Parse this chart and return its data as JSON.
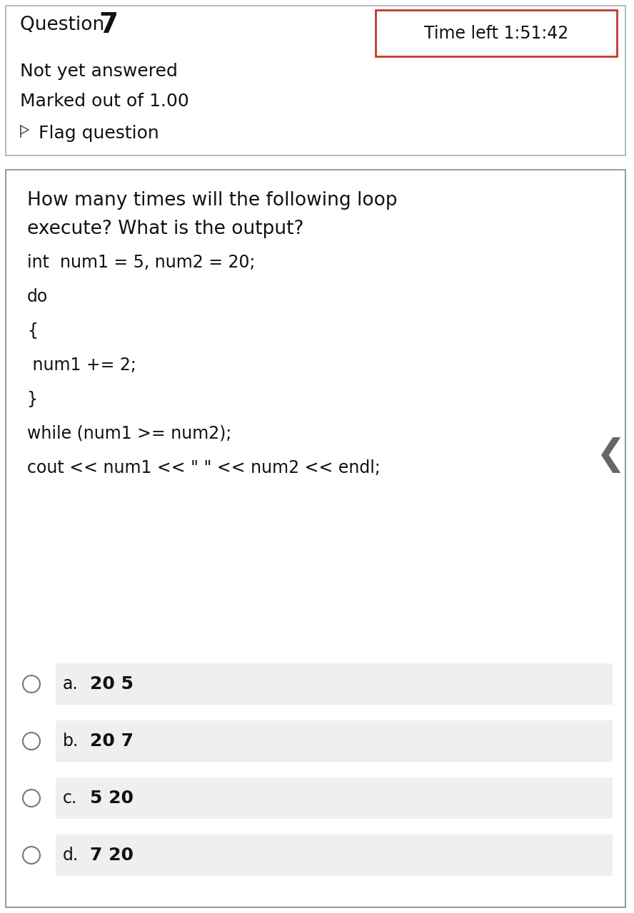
{
  "bg_color": "#ffffff",
  "question_label": "Question ",
  "question_number": "7",
  "time_label": "Time left 1:51:42",
  "time_box_color": "#c0392b",
  "not_answered": "Not yet answered",
  "marked_out": "Marked out of 1.00",
  "flag_label": " Flag question",
  "question_text_line1": "How many times will the following loop",
  "question_text_line2": "execute? What is the output?",
  "code_lines": [
    "int  num1 = 5, num2 = 20;",
    "do",
    "{",
    " num1 += 2;",
    "}",
    "while (num1 >= num2);",
    "cout << num1 << \" \" << num2 << endl;"
  ],
  "options": [
    {
      "label": "a.",
      "text": "20 5"
    },
    {
      "label": "b.",
      "text": "20 7"
    },
    {
      "label": "c.",
      "text": "5 20"
    },
    {
      "label": "d.",
      "text": "7 20"
    }
  ],
  "header_border_color": "#aaaaaa",
  "inner_border_color": "#888888",
  "option_bg_color": "#efefef",
  "chevron_color": "#666666",
  "font_size_body": 18,
  "font_size_code": 17,
  "font_size_option_label": 17,
  "font_size_option_text": 18,
  "font_size_time": 17,
  "font_size_qnum": 28,
  "font_size_q_label": 19
}
